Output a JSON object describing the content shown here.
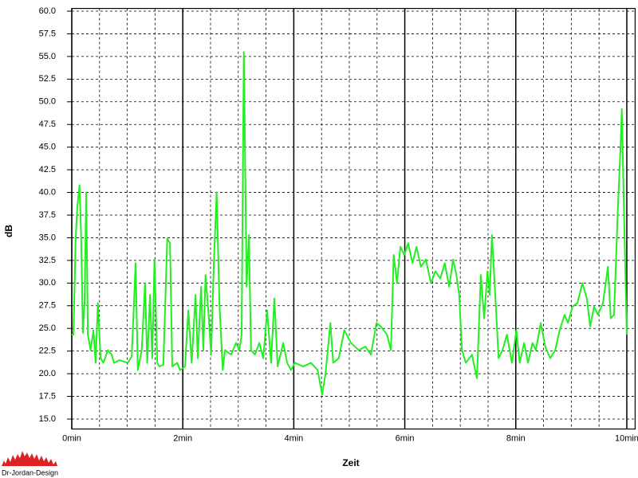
{
  "chart_data": {
    "type": "line",
    "xlabel": "Zeit",
    "ylabel": "dB",
    "xlim": [
      0,
      10.15
    ],
    "ylim": [
      13.9,
      60.3
    ],
    "xticks": [
      {
        "value": 0,
        "label": "0min"
      },
      {
        "value": 2,
        "label": "2min"
      },
      {
        "value": 4,
        "label": "4min"
      },
      {
        "value": 6,
        "label": "6min"
      },
      {
        "value": 8,
        "label": "8min"
      },
      {
        "value": 10,
        "label": "10min"
      }
    ],
    "xminorticks": [
      0.5,
      1,
      1.5,
      2.5,
      3,
      3.5,
      4.5,
      5,
      5.5,
      6.5,
      7,
      7.5,
      8.5,
      9,
      9.5
    ],
    "yticks": [
      {
        "value": 15,
        "label": "15.0"
      },
      {
        "value": 17.5,
        "label": "17.5"
      },
      {
        "value": 20,
        "label": "20.0"
      },
      {
        "value": 22.5,
        "label": "22.5"
      },
      {
        "value": 25,
        "label": "25.0"
      },
      {
        "value": 27.5,
        "label": "27.5"
      },
      {
        "value": 30,
        "label": "30.0"
      },
      {
        "value": 32.5,
        "label": "32.5"
      },
      {
        "value": 35,
        "label": "35.0"
      },
      {
        "value": 37.5,
        "label": "37.5"
      },
      {
        "value": 40,
        "label": "40.0"
      },
      {
        "value": 42.5,
        "label": "42.5"
      },
      {
        "value": 45,
        "label": "45.0"
      },
      {
        "value": 47.5,
        "label": "47.5"
      },
      {
        "value": 50,
        "label": "50.0"
      },
      {
        "value": 52.5,
        "label": "52.5"
      },
      {
        "value": 55,
        "label": "55.0"
      },
      {
        "value": 57.5,
        "label": "57.5"
      },
      {
        "value": 60,
        "label": "60.0"
      }
    ],
    "grid": true,
    "x": [
      0,
      0.03,
      0.07,
      0.1,
      0.14,
      0.17,
      0.2,
      0.23,
      0.26,
      0.29,
      0.34,
      0.39,
      0.43,
      0.47,
      0.52,
      0.57,
      0.65,
      0.72,
      0.76,
      0.86,
      1.01,
      1.08,
      1.15,
      1.19,
      1.26,
      1.32,
      1.36,
      1.41,
      1.45,
      1.49,
      1.54,
      1.58,
      1.65,
      1.72,
      1.77,
      1.81,
      1.9,
      1.95,
      2.04,
      2.1,
      2.16,
      2.23,
      2.27,
      2.33,
      2.37,
      2.41,
      2.47,
      2.51,
      2.56,
      2.61,
      2.66,
      2.72,
      2.76,
      2.87,
      2.96,
      3.02,
      3.06,
      3.1,
      3.15,
      3.19,
      3.23,
      3.3,
      3.38,
      3.45,
      3.52,
      3.59,
      3.65,
      3.71,
      3.81,
      3.88,
      3.95,
      4.02,
      4.17,
      4.31,
      4.43,
      4.51,
      4.57,
      4.66,
      4.71,
      4.81,
      4.91,
      5.03,
      5.17,
      5.29,
      5.39,
      5.49,
      5.57,
      5.68,
      5.75,
      5.8,
      5.86,
      5.92,
      5.99,
      6.06,
      6.14,
      6.21,
      6.29,
      6.38,
      6.47,
      6.55,
      6.64,
      6.72,
      6.8,
      6.87,
      6.93,
      6.98,
      7.03,
      7.1,
      7.21,
      7.3,
      7.37,
      7.43,
      7.49,
      7.53,
      7.57,
      7.63,
      7.69,
      7.76,
      7.84,
      7.93,
      8.01,
      8.07,
      8.15,
      8.22,
      8.3,
      8.36,
      8.45,
      8.53,
      8.62,
      8.71,
      8.79,
      8.88,
      8.94,
      9.02,
      9.11,
      9.2,
      9.28,
      9.34,
      9.41,
      9.48,
      9.57,
      9.66,
      9.71,
      9.77,
      9.84,
      9.89,
      9.91,
      9.96,
      10.0
    ],
    "series": [
      {
        "color": "#22ee22",
        "values": [
          24.3,
          24.3,
          34.9,
          38.4,
          40.8,
          34.9,
          24.5,
          27.8,
          40.0,
          24.3,
          22.6,
          24.8,
          21.2,
          27.8,
          21.7,
          21.2,
          22.6,
          22.1,
          21.2,
          21.5,
          21.2,
          21.9,
          32.2,
          20.4,
          22.6,
          30.0,
          21.2,
          28.7,
          21.7,
          32.6,
          21.2,
          20.8,
          21.0,
          34.9,
          34.4,
          20.8,
          21.2,
          20.4,
          20.8,
          27.0,
          21.2,
          28.7,
          21.7,
          29.6,
          22.6,
          30.9,
          26.1,
          22.1,
          32.2,
          40.0,
          27.8,
          20.4,
          22.6,
          22.1,
          23.4,
          22.6,
          24.3,
          55.5,
          29.6,
          35.3,
          22.6,
          22.1,
          23.4,
          21.7,
          27.0,
          21.2,
          28.3,
          20.8,
          23.4,
          21.2,
          20.4,
          21.2,
          20.8,
          21.2,
          20.4,
          17.7,
          19.9,
          25.6,
          21.2,
          21.7,
          24.8,
          23.4,
          22.6,
          23.0,
          22.1,
          25.6,
          25.2,
          24.3,
          22.6,
          33.1,
          30.0,
          34.0,
          33.1,
          34.4,
          32.2,
          34.0,
          31.8,
          32.6,
          30.0,
          31.3,
          30.5,
          32.2,
          29.6,
          32.6,
          30.9,
          28.7,
          22.6,
          21.2,
          22.1,
          19.5,
          30.9,
          26.1,
          31.3,
          28.7,
          35.3,
          28.7,
          21.7,
          22.6,
          24.3,
          21.2,
          24.8,
          21.2,
          23.4,
          21.2,
          23.4,
          22.6,
          25.6,
          23.0,
          21.7,
          22.6,
          24.8,
          26.5,
          25.6,
          27.4,
          27.8,
          30.0,
          28.3,
          25.2,
          27.4,
          26.5,
          27.8,
          31.8,
          26.1,
          26.5,
          38.4,
          45.4,
          49.2,
          34.9,
          24.3
        ]
      }
    ]
  },
  "logo": {
    "text": "Dr-Jordan-Design"
  }
}
